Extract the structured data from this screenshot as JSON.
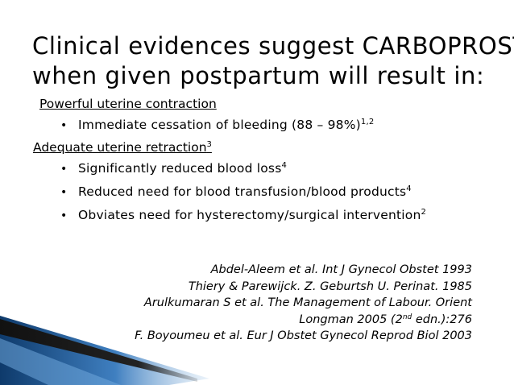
{
  "slide": {
    "title_line1": "Clinical evidences suggest CARBOPROST",
    "title_line2": "when given postpartum will result in:",
    "heading1": "Powerful uterine contraction",
    "bullet1_text": "Immediate cessation of bleeding (88 – 98%)",
    "bullet1_sup": "1,2",
    "heading2_text": "Adequate uterine retraction",
    "heading2_sup": "3",
    "bullet2_text": "Significantly reduced blood loss",
    "bullet2_sup": "4",
    "bullet3_text": "Reduced need for blood transfusion/blood products",
    "bullet3_sup": "4",
    "bullet4_text": "Obviates need for hysterectomy/surgical intervention",
    "bullet4_sup": "2",
    "bullet_glyph": "•"
  },
  "references": {
    "ref1": "Abdel-Aleem et al.  Int J Gynecol Obstet 1993",
    "ref2": "Thiery & Parewijck.  Z. Geburtsh U. Perinat. 1985",
    "ref3": "Arulkumaran S et al.  The Management of Labour.  Orient",
    "ref4_pre": "Longman 2005 (2",
    "ref4_sup": "nd",
    "ref4_post": " edn.):276",
    "ref5": "F. Boyoumeu et al.  Eur J Obstet Gynecol Reprod Biol 2003"
  },
  "colors": {
    "background": "#ffffff",
    "decor_dark_blue": "#0e3a6b",
    "decor_light_blue": "#5a9bd5",
    "decor_black": "#111111"
  }
}
